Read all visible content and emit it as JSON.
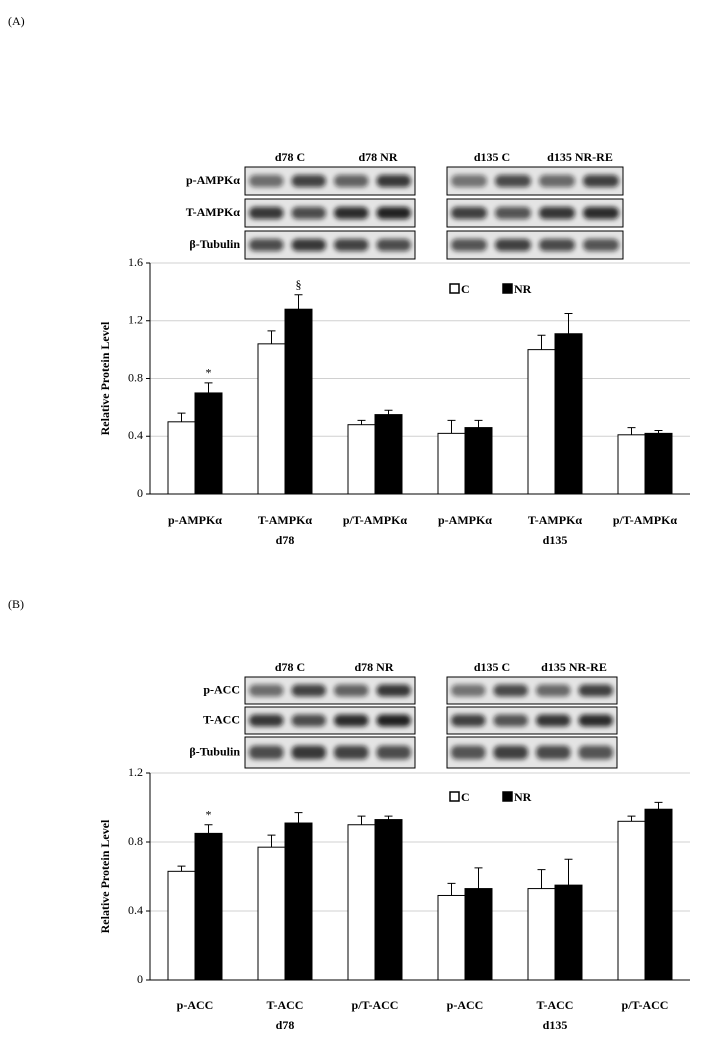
{
  "chart_data": [
    {
      "type": "bar",
      "panel_label": "(A)",
      "ylabel": "Relative Protein Level",
      "blot": {
        "lanes": [
          "d78 C",
          "d78 NR",
          "d135 C",
          "d135 NR-RE"
        ],
        "rows": [
          "p-AMPKα",
          "T-AMPKα",
          "β-Tubulin"
        ]
      },
      "groups": [
        {
          "label": "d78",
          "categories": [
            "p-AMPKα",
            "T-AMPKα",
            "p/T-AMPKα"
          ]
        },
        {
          "label": "d135",
          "categories": [
            "p-AMPKα",
            "T-AMPKα",
            "p/T-AMPKα"
          ]
        }
      ],
      "series": [
        {
          "name": "C",
          "color": "#ffffff",
          "values": [
            0.5,
            1.04,
            0.48,
            0.42,
            1.0,
            0.41
          ],
          "errors": [
            0.06,
            0.09,
            0.03,
            0.09,
            0.1,
            0.05
          ]
        },
        {
          "name": "NR",
          "color": "#000000",
          "values": [
            0.7,
            1.28,
            0.55,
            0.46,
            1.11,
            0.42
          ],
          "errors": [
            0.07,
            0.1,
            0.03,
            0.05,
            0.14,
            0.02
          ],
          "annotations": [
            "*",
            "§",
            null,
            null,
            null,
            null
          ]
        }
      ],
      "ylim": [
        0,
        1.6
      ],
      "yticks": [
        0,
        0.4,
        0.8,
        1.2,
        1.6
      ],
      "grid": true,
      "legend": "top"
    },
    {
      "type": "bar",
      "panel_label": "(B)",
      "ylabel": "Relative Protein Level",
      "blot": {
        "lanes": [
          "d78 C",
          "d78 NR",
          "d135 C",
          "d135 NR-RE"
        ],
        "rows": [
          "p-ACC",
          "T-ACC",
          "β-Tubulin"
        ]
      },
      "groups": [
        {
          "label": "d78",
          "categories": [
            "p-ACC",
            "T-ACC",
            "p/T-ACC"
          ]
        },
        {
          "label": "d135",
          "categories": [
            "p-ACC",
            "T-ACC",
            "p/T-ACC"
          ]
        }
      ],
      "series": [
        {
          "name": "C",
          "color": "#ffffff",
          "values": [
            0.63,
            0.77,
            0.9,
            0.49,
            0.53,
            0.92
          ],
          "errors": [
            0.03,
            0.07,
            0.05,
            0.07,
            0.11,
            0.03
          ]
        },
        {
          "name": "NR",
          "color": "#000000",
          "values": [
            0.85,
            0.91,
            0.93,
            0.53,
            0.55,
            0.99
          ],
          "errors": [
            0.05,
            0.06,
            0.02,
            0.12,
            0.15,
            0.04
          ],
          "annotations": [
            "*",
            null,
            null,
            null,
            null,
            null
          ]
        }
      ],
      "ylim": [
        0,
        1.2
      ],
      "yticks": [
        0,
        0.4,
        0.8,
        1.2
      ],
      "grid": true,
      "legend": "top"
    }
  ]
}
